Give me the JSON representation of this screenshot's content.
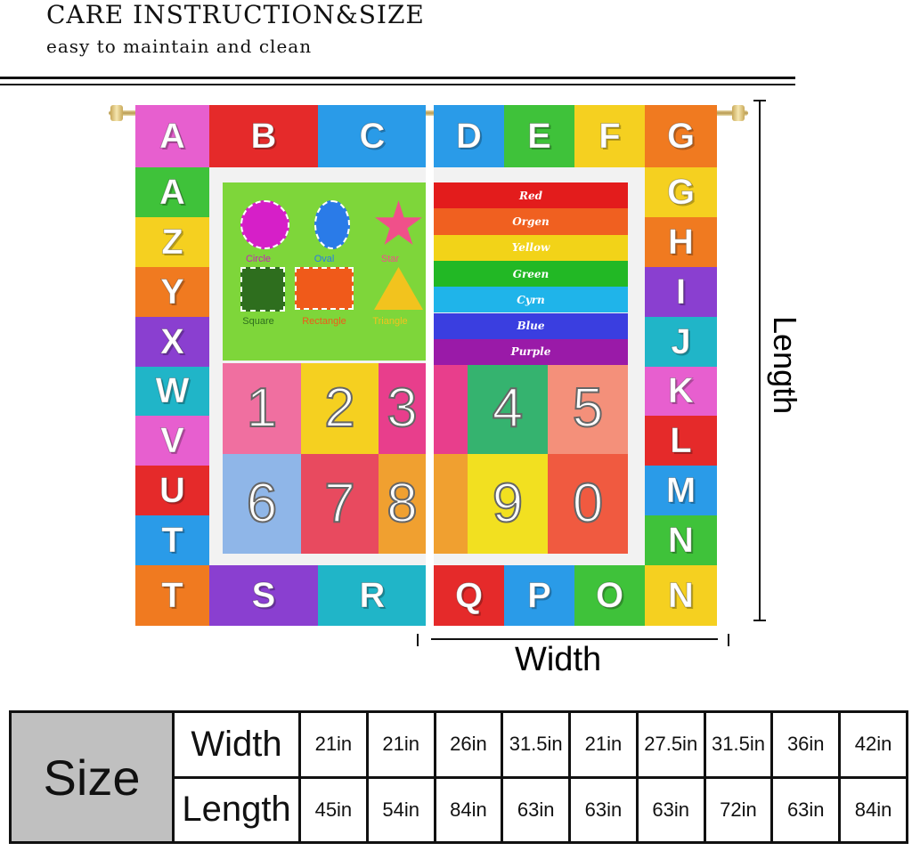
{
  "header": {
    "title": "CARE INSTRUCTION&SIZE",
    "subtitle": "easy to maintain and clean"
  },
  "curtain": {
    "left_column_letters": [
      "A",
      "Z",
      "Y",
      "X",
      "W",
      "V",
      "U",
      "T"
    ],
    "left_top_letters": [
      "A",
      "B",
      "C"
    ],
    "left_bottom_letters": [
      "T",
      "S",
      "R"
    ],
    "right_top_letters": [
      "D",
      "E",
      "F",
      "G"
    ],
    "right_column_letters": [
      "G",
      "H",
      "I",
      "J",
      "K",
      "L",
      "M",
      "N"
    ],
    "right_bottom_letters": [
      "Q",
      "P",
      "O",
      "N"
    ],
    "tile_colors": [
      "#e75fcf",
      "#e52a2a",
      "#2a9be8",
      "#3fc23a",
      "#f5d020",
      "#f07a20",
      "#8a3fd0",
      "#20b5c8"
    ],
    "shapes": [
      "Circle",
      "Oval",
      "Star",
      "Square",
      "Rectangle",
      "Triangle"
    ],
    "colors": [
      {
        "label": "Red",
        "color": "#e31c1c"
      },
      {
        "label": "Orgen",
        "color": "#f06020"
      },
      {
        "label": "Yellow",
        "color": "#f2d318"
      },
      {
        "label": "Green",
        "color": "#22b825"
      },
      {
        "label": "Cyrn",
        "color": "#1fb4ea"
      },
      {
        "label": "Blue",
        "color": "#3a3ee0"
      },
      {
        "label": "Purple",
        "color": "#9a1aa8"
      }
    ],
    "numbers": [
      {
        "n": "1",
        "color": "#f06fa0"
      },
      {
        "n": "2",
        "color": "#f5d020"
      },
      {
        "n": "3",
        "color": "#e83e8c"
      },
      {
        "n": "4",
        "color": "#35b36f"
      },
      {
        "n": "5",
        "color": "#f4907a"
      },
      {
        "n": "6",
        "color": "#8fb6e8"
      },
      {
        "n": "7",
        "color": "#e84a5f"
      },
      {
        "n": "8",
        "color": "#f0a030"
      },
      {
        "n": "9",
        "color": "#f2e020"
      },
      {
        "n": "0",
        "color": "#f05a40"
      }
    ]
  },
  "dimensions": {
    "length_label": "Length",
    "width_label": "Width"
  },
  "size_table": {
    "title": "Size",
    "width_label": "Width",
    "length_label": "Length",
    "widths": [
      "21in",
      "21in",
      "26in",
      "31.5in",
      "21in",
      "27.5in",
      "31.5in",
      "36in",
      "42in"
    ],
    "lengths": [
      "45in",
      "54in",
      "84in",
      "63in",
      "63in",
      "63in",
      "72in",
      "63in",
      "84in"
    ]
  }
}
